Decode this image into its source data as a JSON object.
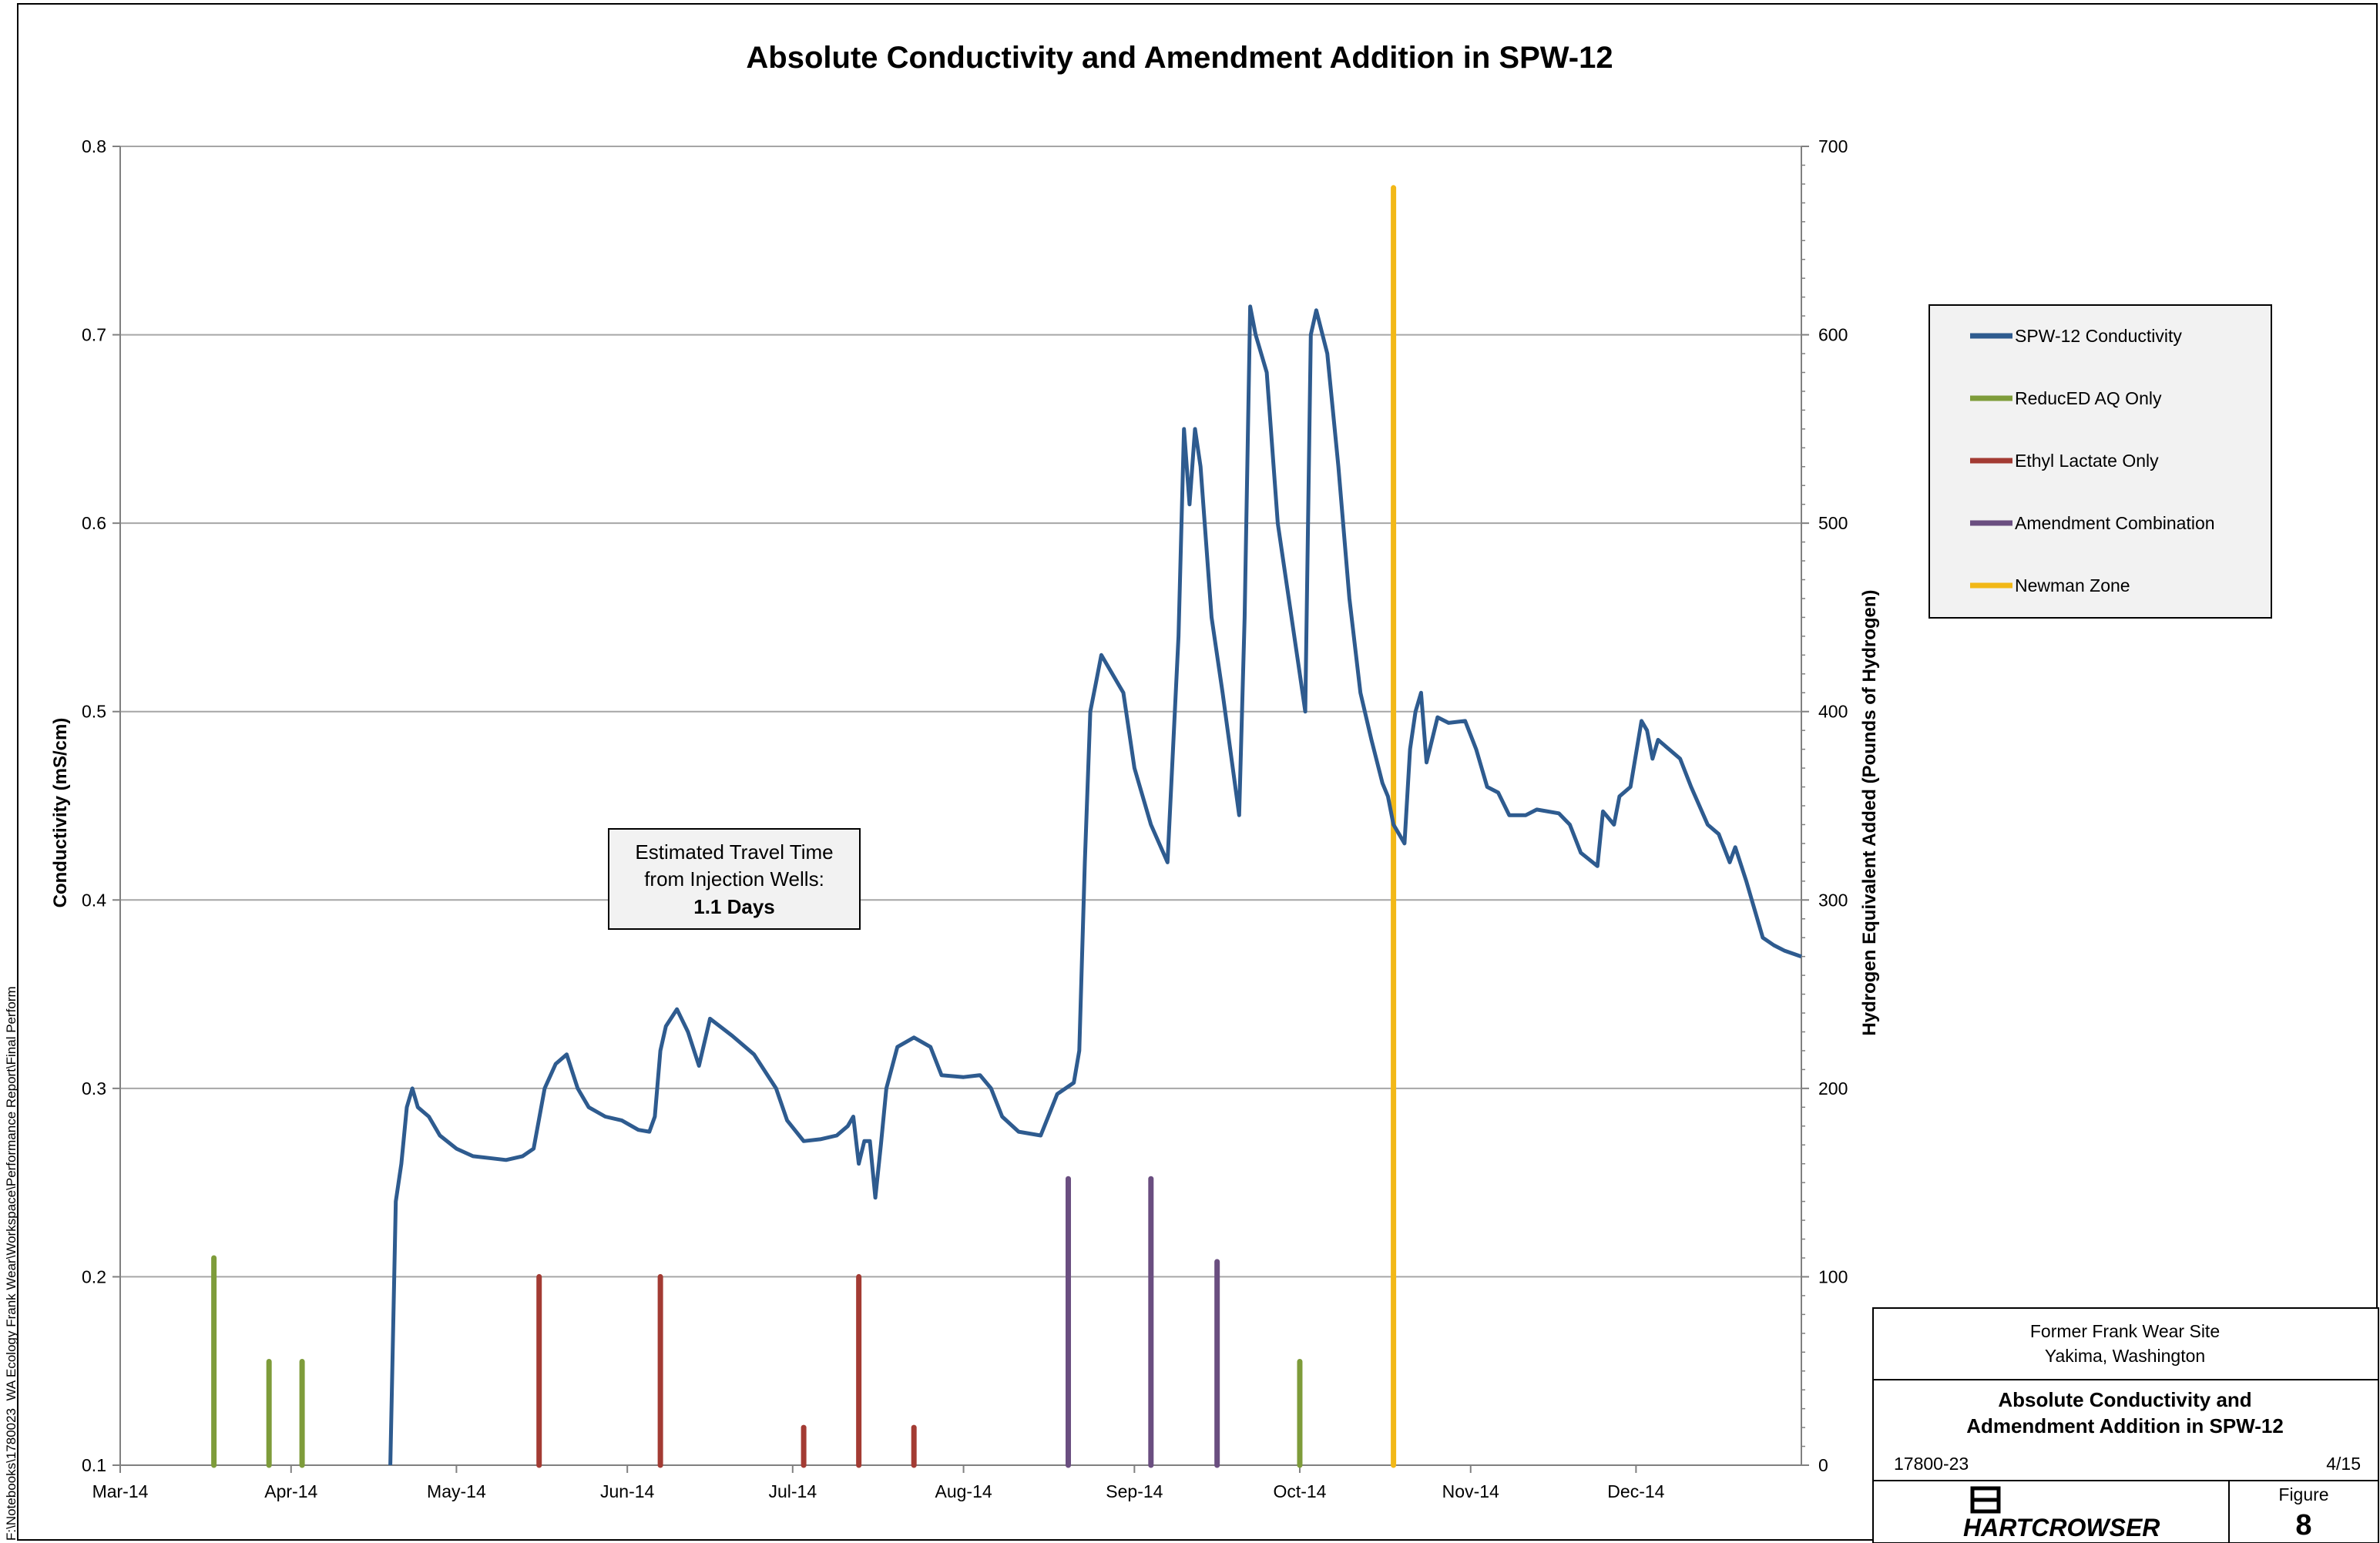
{
  "chart_data": {
    "type": "line",
    "title": "Absolute Conductivity and Amendment Addition in SPW-12",
    "xlabel": "",
    "ylabel": "Conductivity (mS/cm)",
    "y2label": "Hydrogen Equivalent Added (Pounds of Hydrogen)",
    "x_ticks": [
      "Mar-14",
      "Apr-14",
      "May-14",
      "Jun-14",
      "Jul-14",
      "Aug-14",
      "Sep-14",
      "Oct-14",
      "Nov-14",
      "Dec-14"
    ],
    "xlim": [
      "2014-03-01",
      "2014-12-31"
    ],
    "ylim": [
      0.1,
      0.8
    ],
    "y_ticks": [
      "0.1",
      "0.2",
      "0.3",
      "0.4",
      "0.5",
      "0.6",
      "0.7",
      "0.8"
    ],
    "y2lim": [
      0,
      700
    ],
    "y2_ticks": [
      "0",
      "100",
      "200",
      "300",
      "400",
      "500",
      "600",
      "700"
    ],
    "grid": true,
    "legend_position": "right",
    "series": [
      {
        "name": "SPW-12 Conductivity",
        "color": "#2E5B8F",
        "axis": "left",
        "points": [
          [
            "2014-04-19",
            0.1
          ],
          [
            "2014-04-20",
            0.24
          ],
          [
            "2014-04-21",
            0.26
          ],
          [
            "2014-04-22",
            0.29
          ],
          [
            "2014-04-23",
            0.3
          ],
          [
            "2014-04-24",
            0.29
          ],
          [
            "2014-04-26",
            0.285
          ],
          [
            "2014-04-28",
            0.275
          ],
          [
            "2014-05-01",
            0.268
          ],
          [
            "2014-05-04",
            0.264
          ],
          [
            "2014-05-07",
            0.263
          ],
          [
            "2014-05-10",
            0.262
          ],
          [
            "2014-05-13",
            0.264
          ],
          [
            "2014-05-15",
            0.268
          ],
          [
            "2014-05-17",
            0.3
          ],
          [
            "2014-05-19",
            0.313
          ],
          [
            "2014-05-21",
            0.318
          ],
          [
            "2014-05-23",
            0.3
          ],
          [
            "2014-05-25",
            0.29
          ],
          [
            "2014-05-28",
            0.285
          ],
          [
            "2014-05-31",
            0.283
          ],
          [
            "2014-06-03",
            0.278
          ],
          [
            "2014-06-05",
            0.277
          ],
          [
            "2014-06-06",
            0.285
          ],
          [
            "2014-06-07",
            0.32
          ],
          [
            "2014-06-08",
            0.333
          ],
          [
            "2014-06-10",
            0.342
          ],
          [
            "2014-06-12",
            0.33
          ],
          [
            "2014-06-14",
            0.312
          ],
          [
            "2014-06-16",
            0.337
          ],
          [
            "2014-06-20",
            0.328
          ],
          [
            "2014-06-24",
            0.318
          ],
          [
            "2014-06-28",
            0.3
          ],
          [
            "2014-06-30",
            0.283
          ],
          [
            "2014-07-03",
            0.272
          ],
          [
            "2014-07-06",
            0.273
          ],
          [
            "2014-07-09",
            0.275
          ],
          [
            "2014-07-11",
            0.28
          ],
          [
            "2014-07-12",
            0.285
          ],
          [
            "2014-07-13",
            0.26
          ],
          [
            "2014-07-14",
            0.272
          ],
          [
            "2014-07-15",
            0.272
          ],
          [
            "2014-07-16",
            0.242
          ],
          [
            "2014-07-17",
            0.27
          ],
          [
            "2014-07-18",
            0.3
          ],
          [
            "2014-07-20",
            0.322
          ],
          [
            "2014-07-23",
            0.327
          ],
          [
            "2014-07-26",
            0.322
          ],
          [
            "2014-07-28",
            0.307
          ],
          [
            "2014-08-01",
            0.306
          ],
          [
            "2014-08-04",
            0.307
          ],
          [
            "2014-08-06",
            0.3
          ],
          [
            "2014-08-08",
            0.285
          ],
          [
            "2014-08-11",
            0.277
          ],
          [
            "2014-08-15",
            0.275
          ],
          [
            "2014-08-18",
            0.297
          ],
          [
            "2014-08-21",
            0.303
          ],
          [
            "2014-08-22",
            0.32
          ],
          [
            "2014-08-23",
            0.42
          ],
          [
            "2014-08-24",
            0.5
          ],
          [
            "2014-08-25",
            0.515
          ],
          [
            "2014-08-26",
            0.53
          ],
          [
            "2014-08-28",
            0.52
          ],
          [
            "2014-08-30",
            0.51
          ],
          [
            "2014-09-01",
            0.47
          ],
          [
            "2014-09-04",
            0.44
          ],
          [
            "2014-09-07",
            0.42
          ],
          [
            "2014-09-09",
            0.54
          ],
          [
            "2014-09-10",
            0.65
          ],
          [
            "2014-09-11",
            0.61
          ],
          [
            "2014-09-12",
            0.65
          ],
          [
            "2014-09-13",
            0.63
          ],
          [
            "2014-09-15",
            0.55
          ],
          [
            "2014-09-17",
            0.51
          ],
          [
            "2014-09-20",
            0.445
          ],
          [
            "2014-09-21",
            0.55
          ],
          [
            "2014-09-22",
            0.715
          ],
          [
            "2014-09-23",
            0.7
          ],
          [
            "2014-09-25",
            0.68
          ],
          [
            "2014-09-27",
            0.6
          ],
          [
            "2014-09-29",
            0.56
          ],
          [
            "2014-10-01",
            0.52
          ],
          [
            "2014-10-02",
            0.5
          ],
          [
            "2014-10-03",
            0.7
          ],
          [
            "2014-10-04",
            0.713
          ],
          [
            "2014-10-06",
            0.69
          ],
          [
            "2014-10-08",
            0.63
          ],
          [
            "2014-10-10",
            0.56
          ],
          [
            "2014-10-12",
            0.51
          ],
          [
            "2014-10-14",
            0.485
          ],
          [
            "2014-10-16",
            0.462
          ],
          [
            "2014-10-17",
            0.455
          ],
          [
            "2014-10-18",
            0.44
          ],
          [
            "2014-10-19",
            0.435
          ],
          [
            "2014-10-20",
            0.43
          ],
          [
            "2014-10-21",
            0.48
          ],
          [
            "2014-10-22",
            0.5
          ],
          [
            "2014-10-23",
            0.51
          ],
          [
            "2014-10-24",
            0.473
          ],
          [
            "2014-10-26",
            0.497
          ],
          [
            "2014-10-28",
            0.494
          ],
          [
            "2014-10-31",
            0.495
          ],
          [
            "2014-11-02",
            0.48
          ],
          [
            "2014-11-04",
            0.46
          ],
          [
            "2014-11-06",
            0.457
          ],
          [
            "2014-11-08",
            0.445
          ],
          [
            "2014-11-11",
            0.445
          ],
          [
            "2014-11-13",
            0.448
          ],
          [
            "2014-11-17",
            0.446
          ],
          [
            "2014-11-19",
            0.44
          ],
          [
            "2014-11-21",
            0.425
          ],
          [
            "2014-11-24",
            0.418
          ],
          [
            "2014-11-25",
            0.447
          ],
          [
            "2014-11-27",
            0.44
          ],
          [
            "2014-11-28",
            0.455
          ],
          [
            "2014-11-30",
            0.46
          ],
          [
            "2014-12-02",
            0.495
          ],
          [
            "2014-12-03",
            0.49
          ],
          [
            "2014-12-04",
            0.475
          ],
          [
            "2014-12-05",
            0.485
          ],
          [
            "2014-12-09",
            0.475
          ],
          [
            "2014-12-11",
            0.46
          ],
          [
            "2014-12-14",
            0.44
          ],
          [
            "2014-12-16",
            0.435
          ],
          [
            "2014-12-18",
            0.42
          ],
          [
            "2014-12-19",
            0.428
          ],
          [
            "2014-12-21",
            0.41
          ],
          [
            "2014-12-24",
            0.38
          ],
          [
            "2014-12-26",
            0.376
          ],
          [
            "2014-12-28",
            0.373
          ],
          [
            "2014-12-31",
            0.37
          ]
        ]
      },
      {
        "name": "ReducED AQ Only",
        "color": "#7E9C3A",
        "axis": "right",
        "bars": [
          [
            "2014-03-18",
            110
          ],
          [
            "2014-03-28",
            55
          ],
          [
            "2014-04-03",
            55
          ],
          [
            "2014-10-01",
            55
          ]
        ]
      },
      {
        "name": "Ethyl Lactate Only",
        "color": "#A33B33",
        "axis": "right",
        "bars": [
          [
            "2014-05-16",
            100
          ],
          [
            "2014-06-07",
            100
          ],
          [
            "2014-07-03",
            20
          ],
          [
            "2014-07-13",
            100
          ],
          [
            "2014-07-23",
            20
          ]
        ]
      },
      {
        "name": "Amendment Combination",
        "color": "#6A4E80",
        "axis": "right",
        "bars": [
          [
            "2014-08-20",
            152
          ],
          [
            "2014-09-04",
            152
          ],
          [
            "2014-09-16",
            108
          ]
        ]
      },
      {
        "name": "Newman Zone",
        "color": "#F2B817",
        "axis": "right",
        "bars": [
          [
            "2014-10-18",
            678
          ]
        ]
      }
    ],
    "annotation": {
      "line1": "Estimated Travel Time",
      "line2": "from Injection Wells:",
      "line3": "1.1 Days"
    }
  },
  "title_block": {
    "site": "Former Frank Wear Site",
    "location": "Yakima, Washington",
    "title_line1": "Absolute Conductivity and",
    "title_line2": "Admendment Addition in SPW-12",
    "project_no": "17800-23",
    "date": "4/15",
    "company": "HARTCROWSER",
    "figure_label": "Figure",
    "figure_no": "8"
  },
  "file_path": "F:\\Notebooks\\1780023_WA Ecology Frank Wear\\Workspace\\Performance Report\\Final Perform"
}
